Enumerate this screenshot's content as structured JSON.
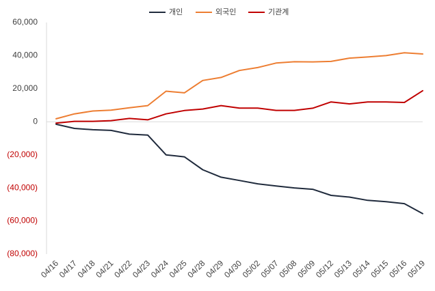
{
  "chart_data": {
    "type": "line",
    "title": "",
    "xlabel": "",
    "ylabel": "",
    "ylim": [
      -80000,
      60000
    ],
    "yticks": [
      60000,
      40000,
      20000,
      0,
      -20000,
      -40000,
      -60000,
      -80000
    ],
    "ytick_labels": [
      "60,000",
      "40,000",
      "20,000",
      "0",
      "(20,000)",
      "(40,000)",
      "(60,000)",
      "(80,000)"
    ],
    "negative_tick_color": "#c00000",
    "positive_tick_color": "#404040",
    "grid": false,
    "legend_position": "top-center",
    "categories": [
      "04/16",
      "04/17",
      "04/18",
      "04/21",
      "04/22",
      "04/23",
      "04/24",
      "04/25",
      "04/28",
      "04/29",
      "04/30",
      "05/02",
      "05/07",
      "05/08",
      "05/09",
      "05/12",
      "05/13",
      "05/14",
      "05/15",
      "05/16",
      "05/19"
    ],
    "series": [
      {
        "name": "개인",
        "color": "#1f2a3c",
        "values": [
          -1500,
          -4000,
          -4800,
          -5200,
          -7500,
          -8000,
          -20000,
          -21200,
          -29000,
          -33500,
          -35500,
          -37500,
          -38800,
          -40000,
          -40800,
          -44500,
          -45500,
          -47500,
          -48300,
          -49500,
          -55500
        ]
      },
      {
        "name": "외국인",
        "color": "#ed7d31",
        "values": [
          1800,
          4800,
          6500,
          7000,
          8500,
          9800,
          18500,
          17500,
          25000,
          26800,
          31000,
          32800,
          35500,
          36300,
          36200,
          36500,
          38500,
          39200,
          40000,
          41700,
          41000
        ]
      },
      {
        "name": "기관계",
        "color": "#c00000",
        "values": [
          -800,
          300,
          300,
          700,
          2000,
          1200,
          4800,
          6800,
          7700,
          9800,
          8300,
          8300,
          6900,
          6900,
          8200,
          12000,
          10800,
          12000,
          12000,
          11700,
          18800
        ]
      }
    ]
  }
}
